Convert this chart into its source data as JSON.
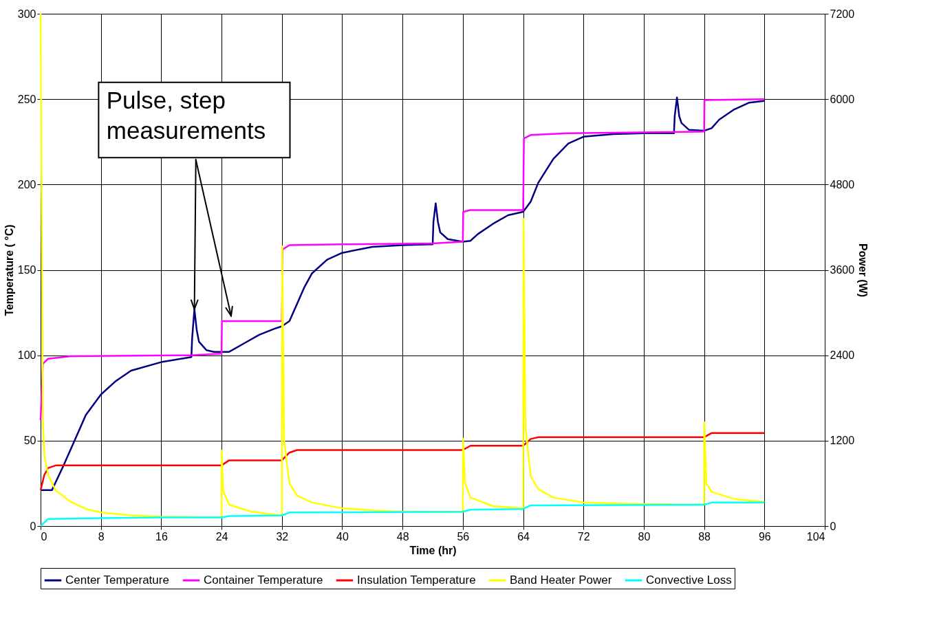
{
  "chart_data": {
    "type": "line",
    "xlabel": "Time (hr)",
    "ylabel": "Temperature ( °C)",
    "y2label": "Power (W)",
    "xlim": [
      0,
      104
    ],
    "xticks": [
      0,
      8,
      16,
      24,
      32,
      40,
      48,
      56,
      64,
      72,
      80,
      88,
      96,
      104
    ],
    "ylim": [
      0,
      300
    ],
    "yticks": [
      0,
      50,
      100,
      150,
      200,
      250,
      300
    ],
    "y2lim": [
      0,
      7200
    ],
    "y2ticks": [
      0,
      1200,
      2400,
      3600,
      4800,
      6000,
      7200
    ],
    "grid": true,
    "legend": "bottom",
    "marker": "none",
    "line_style": "solid",
    "annotations": [
      {
        "text": "Pulse, step\nmeasurements",
        "x": 20.4,
        "y": 127
      }
    ],
    "series": [
      {
        "name": "Center Temperature",
        "color": "#000080",
        "x": [
          0,
          1.5,
          3,
          4,
          5,
          6,
          8,
          10,
          12,
          16,
          20,
          20.1,
          20.4,
          20.7,
          21,
          22,
          23,
          25,
          27,
          29,
          31,
          32,
          33,
          34,
          35,
          36,
          38,
          40,
          44,
          48,
          52,
          52.1,
          52.4,
          52.7,
          53,
          54,
          56,
          57,
          58,
          60,
          62,
          64,
          65,
          66,
          68,
          70,
          72,
          76,
          80,
          84,
          84.1,
          84.4,
          84.7,
          85,
          86,
          88,
          89,
          90,
          92,
          94,
          96
        ],
        "values": [
          21,
          21,
          35,
          45,
          55,
          65,
          77,
          85,
          91,
          96,
          99,
          110,
          127,
          115,
          108,
          103,
          102,
          102,
          107,
          112,
          115.5,
          117,
          120,
          130,
          140,
          148,
          156,
          160,
          163.5,
          164.5,
          165,
          178,
          189,
          178,
          172,
          168,
          166.5,
          167,
          171,
          177,
          182,
          184,
          190,
          201,
          215,
          224,
          228,
          229.5,
          230,
          230,
          240,
          251,
          240,
          236,
          232,
          231.5,
          233,
          238,
          244,
          248,
          249
        ]
      },
      {
        "name": "Container Temperature",
        "color": "#ff00ff",
        "x": [
          0,
          0.3,
          1,
          4,
          20,
          24,
          24.05,
          32,
          32.1,
          33,
          40,
          52,
          56,
          56.05,
          57,
          64,
          64.1,
          65,
          70,
          88,
          88.05,
          96
        ],
        "values": [
          62,
          95,
          98,
          99.5,
          100,
          101,
          120,
          120,
          162,
          164.5,
          165,
          165.5,
          166.5,
          184,
          185,
          185,
          227,
          229,
          230,
          231,
          249.5,
          250
        ]
      },
      {
        "name": "Insulation Temperature",
        "color": "#ff0000",
        "x": [
          0,
          0.5,
          1,
          2,
          24,
          25,
          32,
          33,
          34,
          56,
          57,
          64,
          65,
          66,
          88,
          89,
          96
        ],
        "values": [
          21,
          30,
          34,
          35.5,
          35.5,
          38.5,
          38.5,
          43,
          44.5,
          44.5,
          47,
          47,
          51,
          52,
          52,
          54.5,
          54.5
        ]
      },
      {
        "name": "Band Heater Power",
        "color": "#ffff00",
        "axis": "y2",
        "x": [
          0,
          0.3,
          0.5,
          1,
          2,
          4,
          6,
          8,
          12,
          16,
          24,
          24.02,
          24.2,
          25,
          28,
          32,
          32.05,
          32.3,
          33,
          34,
          36,
          40,
          44,
          48,
          56,
          56.02,
          56.3,
          57,
          60,
          64,
          64.05,
          64.3,
          65,
          66,
          68,
          72,
          80,
          88,
          88.02,
          88.3,
          89,
          92,
          96
        ],
        "values": [
          7200,
          1500,
          1000,
          720,
          500,
          340,
          240,
          190,
          150,
          130,
          120,
          1060,
          500,
          300,
          200,
          150,
          3930,
          1200,
          600,
          430,
          330,
          250,
          220,
          200,
          200,
          1230,
          600,
          400,
          280,
          250,
          4320,
          1400,
          700,
          520,
          400,
          330,
          310,
          300,
          1460,
          600,
          480,
          380,
          340
        ]
      },
      {
        "name": "Convective Loss",
        "color": "#00ffff",
        "axis": "y2",
        "x": [
          0,
          1,
          8,
          16,
          24,
          25,
          32,
          33,
          56,
          57,
          64,
          65,
          88,
          89,
          96
        ],
        "values": [
          0,
          100,
          110,
          120,
          120,
          140,
          150,
          190,
          200,
          230,
          240,
          290,
          300,
          330,
          330
        ]
      }
    ]
  }
}
